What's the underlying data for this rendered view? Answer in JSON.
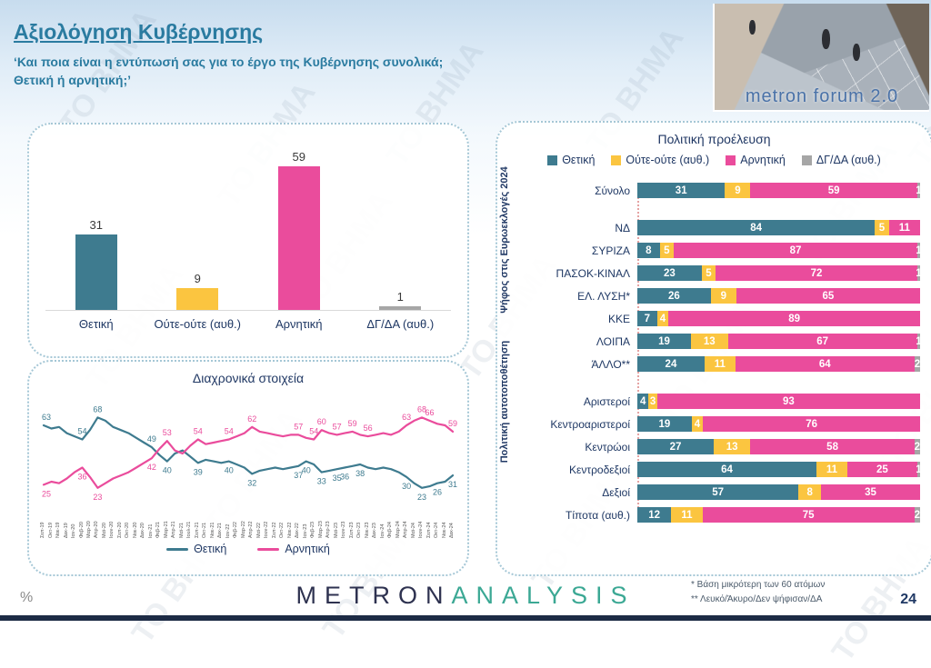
{
  "page": {
    "percent_label": "%",
    "page_number": "24",
    "watermark": "ΤΟ ΒΗΜΑ"
  },
  "header": {
    "title": "Αξιολόγηση Κυβέρνησης",
    "subtitle_line1": "‘Και ποια είναι η εντύπωσή σας για το έργο της Κυβέρνησης συνολικά;",
    "subtitle_line2": "Θετική ή αρνητική;’",
    "logo_text": "metron forum 2.0"
  },
  "footer": {
    "brand_metron": "METRON",
    "brand_analysis": "ANALYSIS",
    "footnote1": "*  Βάση μικρότερη των 60 ατόμων",
    "footnote2": "** Λευκό/Άκυρο/Δεν ψήφισαν/ΔΑ"
  },
  "colors": {
    "positive": "#3E7B8F",
    "neither": "#FBC540",
    "negative": "#EA4C9C",
    "dontknow": "#A6A6A6",
    "accent_title": "#2a7ba0",
    "navy_text": "#1F3864"
  },
  "chart_data": [
    {
      "type": "bar",
      "title": "",
      "categories": [
        "Θετική",
        "Ούτε-ούτε (αυθ.)",
        "Αρνητική",
        "ΔΓ/ΔΑ (αυθ.)"
      ],
      "values": [
        31,
        9,
        59,
        1
      ],
      "bar_colors": [
        "#3E7B8F",
        "#FBC540",
        "#EA4C9C",
        "#A6A6A6"
      ],
      "ylim": [
        0,
        70
      ]
    },
    {
      "type": "line",
      "title": "Διαχρονικά στοιχεία",
      "ylim": [
        20,
        70
      ],
      "x": [
        "Σεπ-19",
        "Οκτ-19",
        "Νοε-19",
        "Δεκ-19",
        "Ιαν-20",
        "Φεβ-20",
        "Μαρ-20",
        "Απρ-20",
        "Μαϊ-20",
        "Ιουν-20",
        "Σεπ-20",
        "Οκτ-20",
        "Νοε-20",
        "Δεκ-20",
        "Ιαν-21",
        "Φεβ-21",
        "Μαρ-21",
        "Απρ-21",
        "Μαϊ-21",
        "Ιουλ-21",
        "Σεπ-21",
        "Οκτ-21",
        "Νοε-21",
        "Δεκ-21",
        "Ιαν-22",
        "Φεβ-22",
        "Μαρ-22",
        "Απρ-22",
        "Μαϊ-22",
        "Ιουν-22",
        "Σεπ-22",
        "Οκτ-22",
        "Νοε-22",
        "Δεκ-22",
        "Ιαν-23",
        "Φεβ-23",
        "Μαρ-23",
        "Απρ-23",
        "Μαϊ-23",
        "Ιουν-23",
        "Σεπ-23",
        "Οκτ-23",
        "Νοε-23",
        "Δεκ-23",
        "Ιαν-24",
        "Φεβ-24",
        "Μαρ-24",
        "Απρ-24",
        "Μαϊ-24",
        "Ιουν-24",
        "Σεπ-24",
        "Οκτ-24",
        "Νοε-24",
        "Δεκ-24"
      ],
      "series": [
        {
          "name": "Θετική",
          "color": "#3E7B8F",
          "values": [
            63,
            61,
            62,
            58,
            56,
            54,
            60,
            68,
            66,
            62,
            60,
            58,
            55,
            52,
            49,
            44,
            40,
            45,
            47,
            43,
            39,
            41,
            40,
            39,
            40,
            38,
            36,
            32,
            34,
            35,
            36,
            35,
            36,
            37,
            40,
            38,
            33,
            34,
            35,
            36,
            37,
            38,
            36,
            35,
            36,
            35,
            33,
            30,
            26,
            23,
            24,
            26,
            27,
            31
          ],
          "label_idx": [
            0,
            5,
            7,
            14,
            16,
            20,
            24,
            27,
            33,
            34,
            36,
            38,
            39,
            41,
            47,
            49,
            51,
            53
          ]
        },
        {
          "name": "Αρνητική",
          "color": "#EA4C9C",
          "values": [
            25,
            27,
            26,
            29,
            33,
            36,
            30,
            23,
            26,
            29,
            31,
            33,
            36,
            39,
            42,
            48,
            53,
            47,
            45,
            50,
            54,
            51,
            52,
            53,
            54,
            56,
            58,
            62,
            59,
            58,
            57,
            56,
            57,
            57,
            55,
            54,
            60,
            58,
            57,
            58,
            59,
            57,
            56,
            57,
            58,
            57,
            59,
            63,
            66,
            68,
            66,
            64,
            63,
            59
          ],
          "label_idx": [
            0,
            5,
            7,
            14,
            16,
            20,
            24,
            27,
            33,
            35,
            36,
            38,
            40,
            42,
            47,
            49,
            50,
            53
          ]
        }
      ]
    },
    {
      "type": "stacked-bar-horizontal",
      "title": "Πολιτική προέλευση",
      "legend": [
        {
          "label": "Θετική",
          "color": "#3E7B8F"
        },
        {
          "label": "Ούτε-ούτε (αυθ.)",
          "color": "#FBC540"
        },
        {
          "label": "Αρνητική",
          "color": "#EA4C9C"
        },
        {
          "label": "ΔΓ/ΔΑ (αυθ.)",
          "color": "#A6A6A6"
        }
      ],
      "groups": [
        {
          "side_label": "",
          "rows": [
            {
              "label": "Σύνολο",
              "values": [
                31,
                9,
                59,
                1
              ]
            }
          ]
        },
        {
          "side_label": "Ψήφος στις Ευρωεκλογές 2024",
          "rows": [
            {
              "label": "ΝΔ",
              "values": [
                84,
                5,
                11,
                0
              ]
            },
            {
              "label": "ΣΥΡΙΖΑ",
              "values": [
                8,
                5,
                87,
                1
              ]
            },
            {
              "label": "ΠΑΣΟΚ-ΚΙΝΑΛ",
              "values": [
                23,
                5,
                72,
                1
              ]
            },
            {
              "label": "ΕΛ. ΛΥΣΗ*",
              "values": [
                26,
                9,
                65,
                0
              ]
            },
            {
              "label": "ΚΚΕ",
              "values": [
                7,
                4,
                89,
                0
              ]
            },
            {
              "label": "ΛΟΙΠΑ",
              "values": [
                19,
                13,
                67,
                1
              ]
            },
            {
              "label": "ΆΛΛΟ**",
              "values": [
                24,
                11,
                64,
                2
              ]
            }
          ]
        },
        {
          "side_label": "Πολιτική αυτοτοποθέτηση",
          "rows": [
            {
              "label": "Αριστεροί",
              "values": [
                4,
                3,
                93,
                0
              ]
            },
            {
              "label": "Κεντροαριστεροί",
              "values": [
                19,
                4,
                76,
                0
              ]
            },
            {
              "label": "Κεντρώοι",
              "values": [
                27,
                13,
                58,
                2
              ]
            },
            {
              "label": "Κεντροδεξιοί",
              "values": [
                64,
                11,
                25,
                1
              ]
            },
            {
              "label": "Δεξιοί",
              "values": [
                57,
                8,
                35,
                0
              ]
            },
            {
              "label": "Τίποτα (αυθ.)",
              "values": [
                12,
                11,
                75,
                2
              ]
            }
          ]
        }
      ]
    }
  ]
}
